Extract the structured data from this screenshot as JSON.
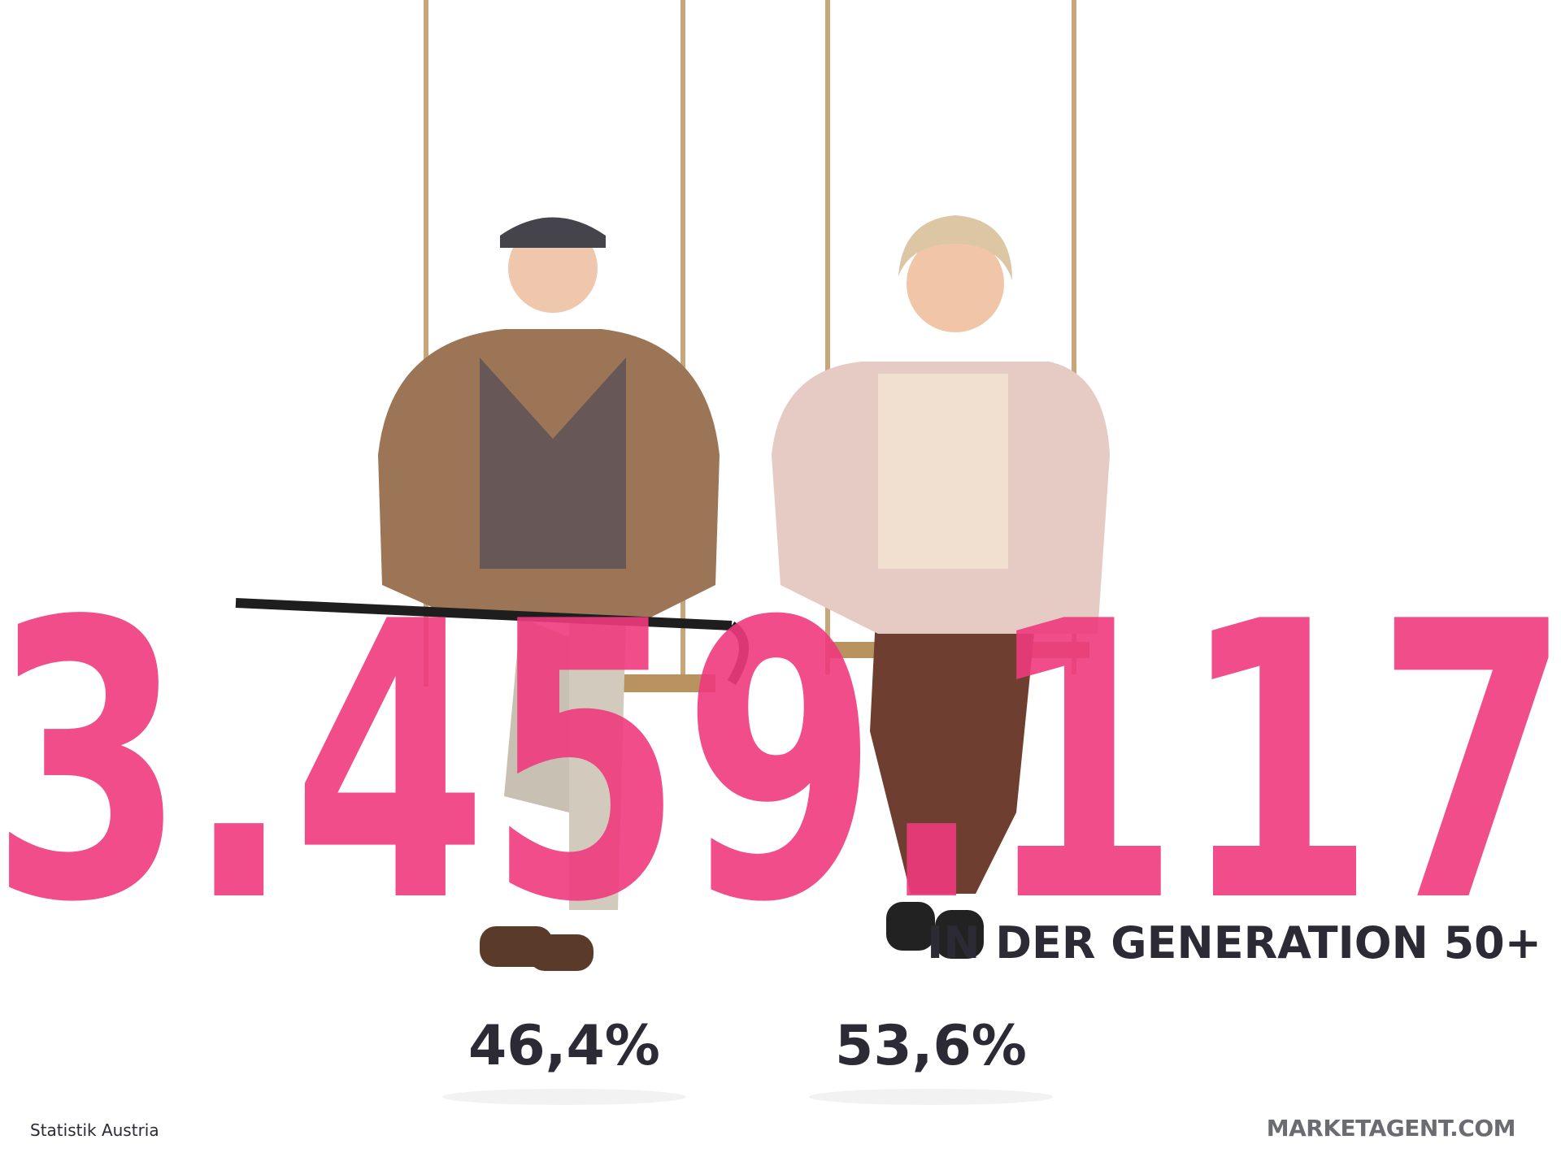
{
  "headline": {
    "number": "3.459.117",
    "subtitle": "IN DER GENERATION 50+"
  },
  "shares": [
    "46,4%",
    "53,6%"
  ],
  "source": "Statistik Austria",
  "logo": "MARKETAGENT.COM"
}
